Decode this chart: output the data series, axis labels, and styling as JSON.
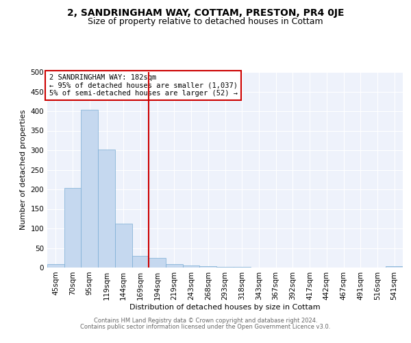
{
  "title": "2, SANDRINGHAM WAY, COTTAM, PRESTON, PR4 0JE",
  "subtitle": "Size of property relative to detached houses in Cottam",
  "xlabel": "Distribution of detached houses by size in Cottam",
  "ylabel": "Number of detached properties",
  "bar_labels": [
    "45sqm",
    "70sqm",
    "95sqm",
    "119sqm",
    "144sqm",
    "169sqm",
    "194sqm",
    "219sqm",
    "243sqm",
    "268sqm",
    "293sqm",
    "318sqm",
    "343sqm",
    "367sqm",
    "392sqm",
    "417sqm",
    "442sqm",
    "467sqm",
    "491sqm",
    "516sqm",
    "541sqm"
  ],
  "bar_values": [
    8,
    204,
    403,
    302,
    113,
    29,
    25,
    8,
    5,
    3,
    2,
    1,
    0,
    0,
    0,
    0,
    0,
    0,
    0,
    0,
    4
  ],
  "bar_color": "#c5d8ef",
  "bar_edge_color": "#7aadd4",
  "bar_width": 1.0,
  "vline_x": 6.0,
  "vline_color": "#cc0000",
  "annotation_text": "2 SANDRINGHAM WAY: 182sqm\n← 95% of detached houses are smaller (1,037)\n5% of semi-detached houses are larger (52) →",
  "annotation_box_color": "#ffffff",
  "annotation_box_edge": "#cc0000",
  "ylim": [
    0,
    500
  ],
  "yticks": [
    0,
    50,
    100,
    150,
    200,
    250,
    300,
    350,
    400,
    450,
    500
  ],
  "footer1": "Contains HM Land Registry data © Crown copyright and database right 2024.",
  "footer2": "Contains public sector information licensed under the Open Government Licence v3.0.",
  "plot_bg_color": "#eef2fb",
  "title_fontsize": 10,
  "subtitle_fontsize": 9,
  "ylabel_fontsize": 8,
  "xlabel_fontsize": 8,
  "tick_fontsize": 7.5,
  "footer_fontsize": 6,
  "annotation_fontsize": 7.5
}
